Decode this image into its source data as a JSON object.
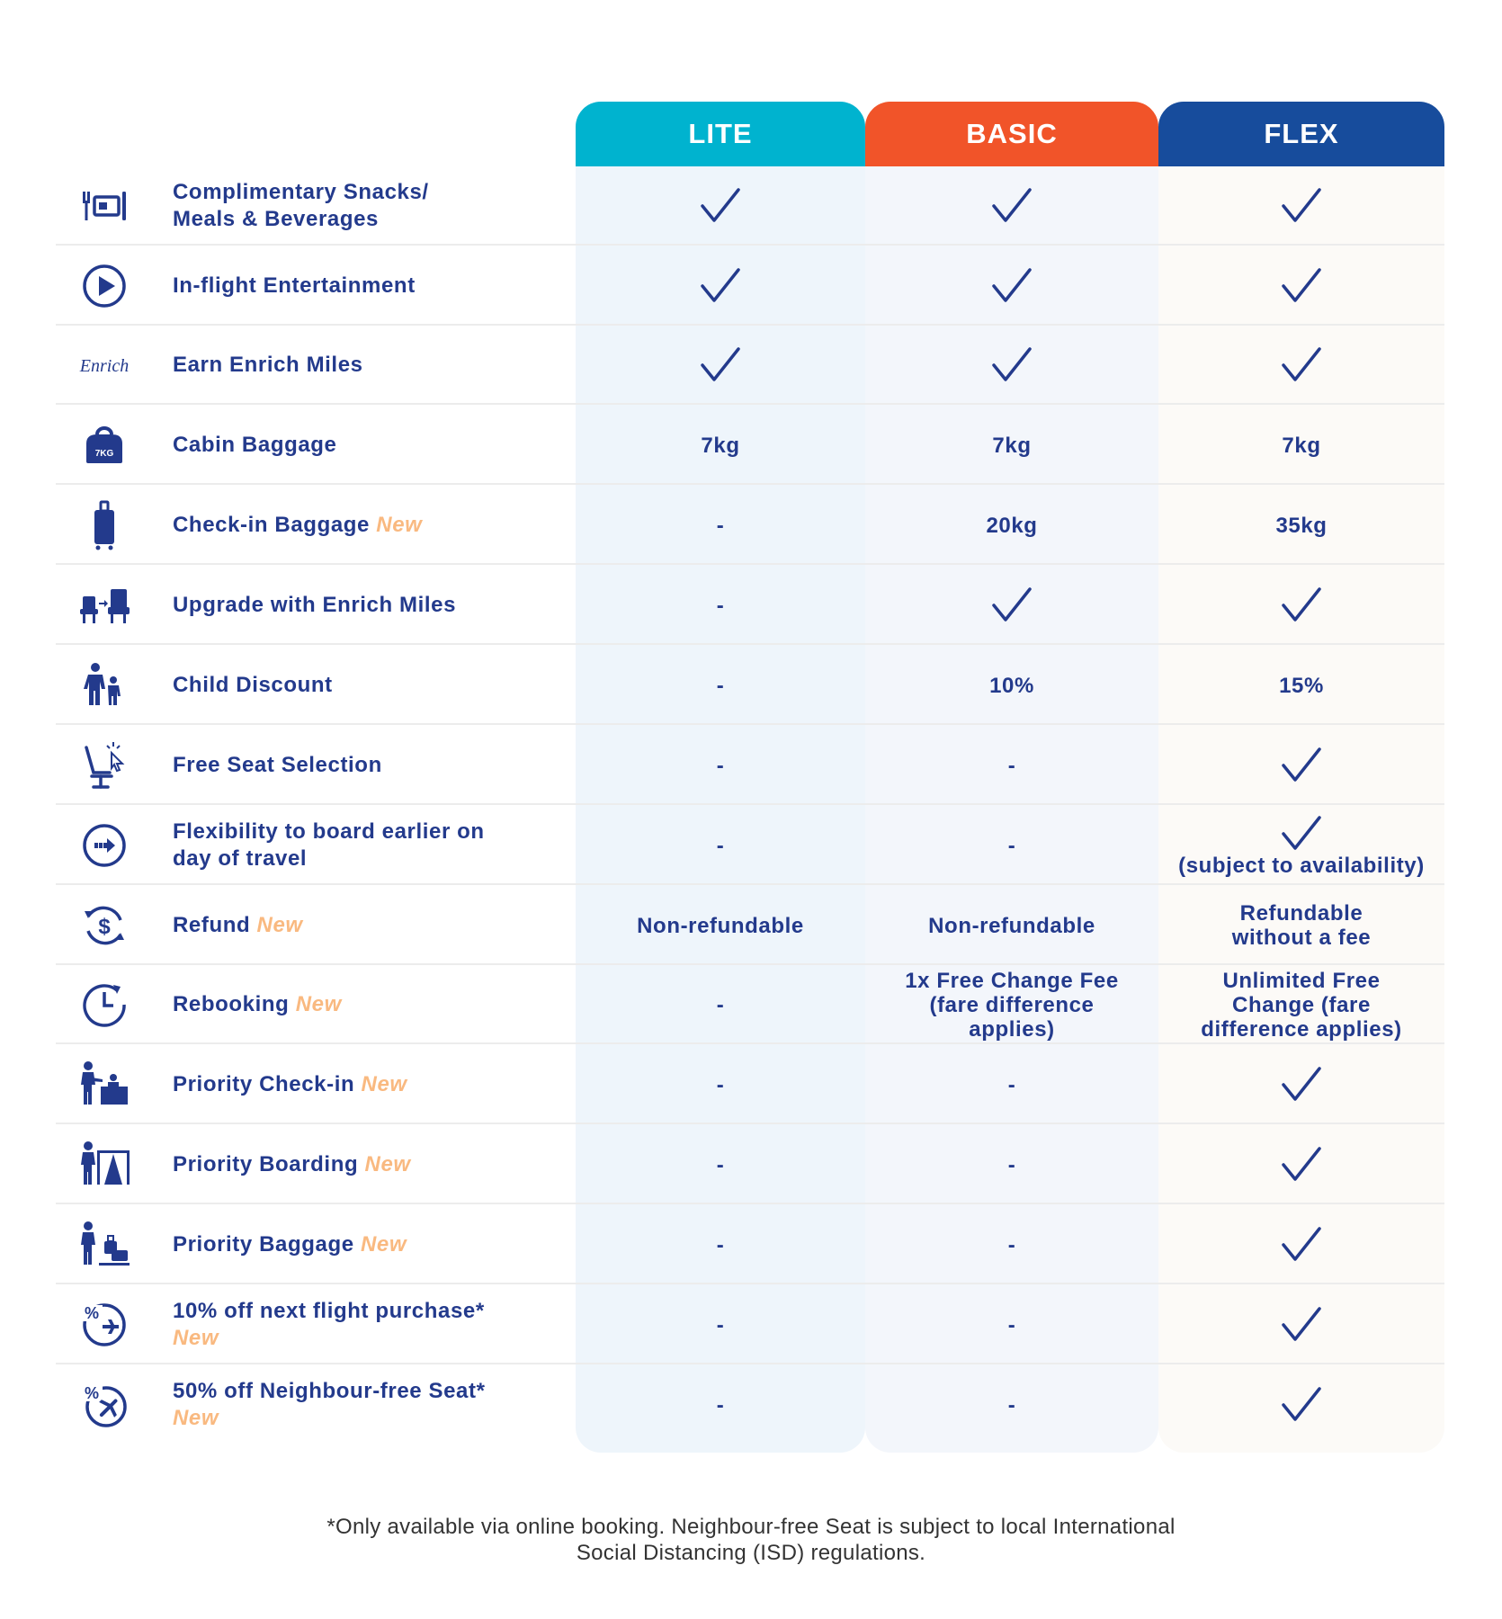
{
  "columns": [
    {
      "label": "LITE",
      "color": "#00b3cf"
    },
    {
      "label": "BASIC",
      "color": "#f15429"
    },
    {
      "label": "FLEX",
      "color": "#174c9c"
    }
  ],
  "new_tag": "New",
  "rows": [
    {
      "icon": "utensils-tray-icon",
      "label": "Complimentary Snacks/ Meals & Beverages",
      "lite": "check",
      "basic": "check",
      "flex": "check"
    },
    {
      "icon": "play-icon",
      "label": "In-flight Entertainment",
      "lite": "check",
      "basic": "check",
      "flex": "check"
    },
    {
      "icon": "enrich-logo-icon",
      "label": "Earn Enrich Miles",
      "lite": "check",
      "basic": "check",
      "flex": "check"
    },
    {
      "icon": "cabin-bag-icon",
      "icon_text": "7KG",
      "label": "Cabin Baggage",
      "lite": "7kg",
      "basic": "7kg",
      "flex": "7kg"
    },
    {
      "icon": "suitcase-icon",
      "label": "Check-in Baggage",
      "new": true,
      "lite": "-",
      "basic": "20kg",
      "flex": "35kg"
    },
    {
      "icon": "seat-upgrade-icon",
      "label": "Upgrade with Enrich Miles",
      "lite": "-",
      "basic": "check",
      "flex": "check"
    },
    {
      "icon": "adult-child-icon",
      "label": "Child Discount",
      "lite": "-",
      "basic": "10%",
      "flex": "15%"
    },
    {
      "icon": "seat-select-icon",
      "label": "Free Seat Selection",
      "lite": "-",
      "basic": "-",
      "flex": "check"
    },
    {
      "icon": "fast-forward-icon",
      "label": "Flexibility to board earlier on day of travel",
      "lite": "-",
      "basic": "-",
      "flex": "check",
      "flex_note": "(subject to availability)"
    },
    {
      "icon": "refund-icon",
      "label": "Refund",
      "new": true,
      "lite": "Non-refundable",
      "basic": "Non-refundable",
      "flex": "Refundable without a fee"
    },
    {
      "icon": "clock-icon",
      "label": "Rebooking",
      "new": true,
      "lite": "-",
      "basic": "1x Free Change Fee (fare difference applies)",
      "flex": "Unlimited Free Change (fare difference applies)"
    },
    {
      "icon": "priority-checkin-icon",
      "label": "Priority Check-in",
      "new": true,
      "lite": "-",
      "basic": "-",
      "flex": "check"
    },
    {
      "icon": "priority-boarding-icon",
      "label": "Priority Boarding",
      "new": true,
      "lite": "-",
      "basic": "-",
      "flex": "check"
    },
    {
      "icon": "priority-baggage-icon",
      "label": "Priority Baggage",
      "new": true,
      "lite": "-",
      "basic": "-",
      "flex": "check"
    },
    {
      "icon": "discount-flight-icon",
      "label": "10% off next flight purchase*",
      "new": true,
      "new_break": true,
      "lite": "-",
      "basic": "-",
      "flex": "check"
    },
    {
      "icon": "discount-seat-icon",
      "label": "50% off Neighbour-free Seat*",
      "new": true,
      "new_break": true,
      "lite": "-",
      "basic": "-",
      "flex": "check"
    }
  ],
  "footnote": "*Only available via online booking. Neighbour-free Seat is subject to local International Social Distancing (ISD) regulations."
}
